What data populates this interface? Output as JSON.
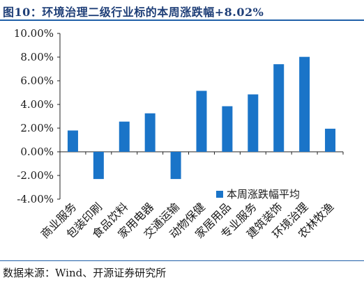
{
  "figure": {
    "title": "图10：环境治理二级行业标的本周涨跌幅+8.02%",
    "source": "数据来源：Wind、开源证券研究所"
  },
  "chart_data": {
    "type": "bar",
    "categories": [
      "商业服务",
      "包装印刷",
      "食品饮料",
      "家用电器",
      "交通运输",
      "动物保健",
      "家居用品",
      "专业服务",
      "建筑装饰",
      "环境治理",
      "农林牧渔"
    ],
    "series": [
      {
        "name": "本周涨跌幅平均",
        "values": [
          1.8,
          -2.3,
          2.55,
          3.25,
          -2.3,
          5.15,
          3.85,
          4.85,
          7.4,
          8.02,
          1.95
        ],
        "color": "#1a74c8"
      }
    ],
    "yticks": [
      "10.00%",
      "8.00%",
      "6.00%",
      "4.00%",
      "2.00%",
      "0.00%",
      "-2.00%",
      "-4.00%"
    ],
    "ylim": [
      -4,
      10
    ],
    "ytick_step": 2,
    "grid": false,
    "legend": "bottom-right",
    "xlabel": "",
    "ylabel": ""
  }
}
